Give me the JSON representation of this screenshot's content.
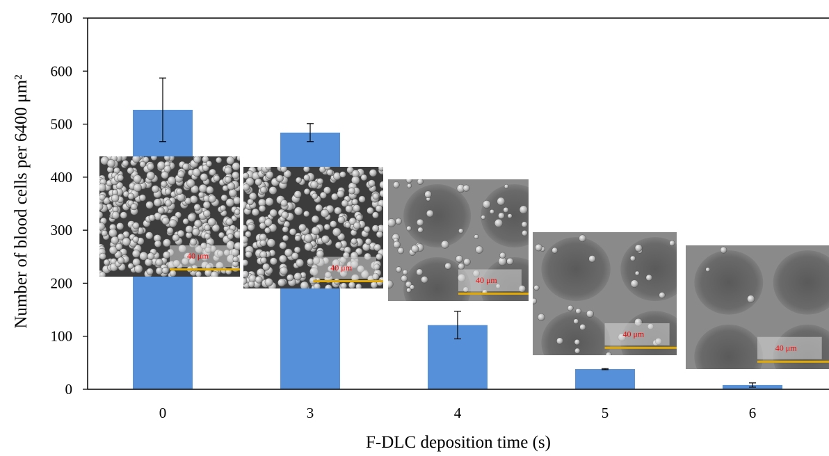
{
  "chart_data": {
    "type": "bar",
    "title": "",
    "xlabel": "F-DLC deposition time (s)",
    "ylabel": "Number of blood cells per 6400 μm²",
    "categories": [
      "0",
      "3",
      "4",
      "5",
      "6"
    ],
    "values": [
      527,
      484,
      121,
      38,
      8
    ],
    "error": [
      60,
      17,
      26,
      1,
      4
    ],
    "ylim": [
      0,
      700
    ],
    "yticks": [
      "0",
      "100",
      "200",
      "300",
      "400",
      "500",
      "600",
      "700"
    ],
    "bar_color": "#5590d8",
    "grid": false,
    "legend": "none",
    "insets": [
      {
        "category": "0",
        "scale_bar": "40 μm",
        "cell_density": "very high"
      },
      {
        "category": "3",
        "scale_bar": "40 μm",
        "cell_density": "high"
      },
      {
        "category": "4",
        "scale_bar": "40 μm",
        "cell_density": "low"
      },
      {
        "category": "5",
        "scale_bar": "40 μm",
        "cell_density": "very low"
      },
      {
        "category": "6",
        "scale_bar": "40 μm",
        "cell_density": "minimal"
      }
    ]
  }
}
